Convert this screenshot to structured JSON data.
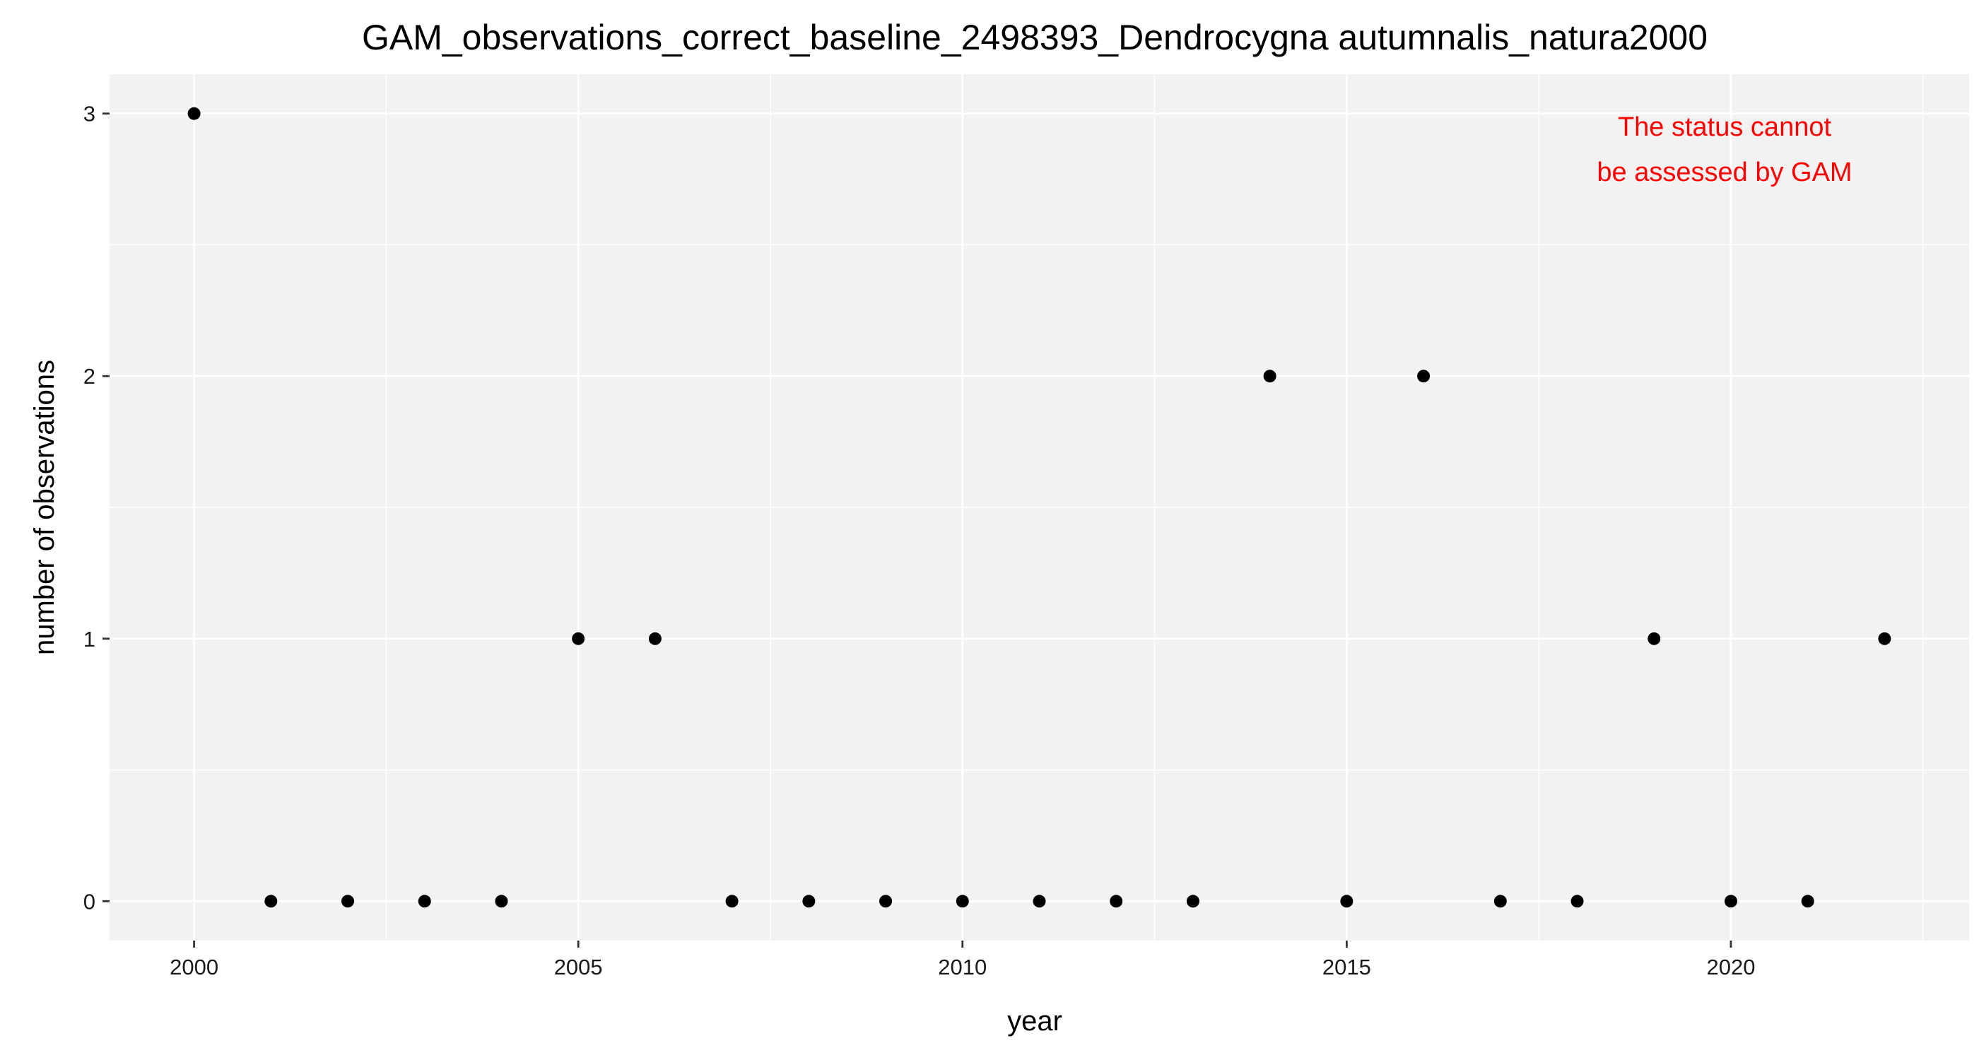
{
  "chart_data": {
    "type": "scatter",
    "title": "GAM_observations_correct_baseline_2498393_Dendrocygna autumnalis_natura2000",
    "xlabel": "year",
    "ylabel": "number of observations",
    "xlim": [
      1998.9,
      2023.1
    ],
    "ylim": [
      -0.15,
      3.15
    ],
    "x_ticks": [
      2000,
      2005,
      2010,
      2015,
      2020
    ],
    "y_ticks": [
      0,
      1,
      2,
      3
    ],
    "grid": true,
    "legend": "none",
    "x": [
      2000,
      2001,
      2002,
      2003,
      2004,
      2005,
      2006,
      2007,
      2008,
      2009,
      2010,
      2011,
      2012,
      2013,
      2014,
      2015,
      2016,
      2017,
      2018,
      2019,
      2020,
      2021,
      2022
    ],
    "y": [
      3,
      0,
      0,
      0,
      0,
      1,
      1,
      0,
      0,
      0,
      0,
      0,
      0,
      0,
      2,
      0,
      2,
      0,
      0,
      1,
      0,
      0,
      1
    ],
    "annotation": {
      "lines": [
        "The status cannot",
        "be assessed by GAM"
      ],
      "color": "#ff0000"
    },
    "colors": {
      "panel": "#f2f2f2",
      "grid_major": "#ffffff",
      "point": "#000000"
    }
  }
}
